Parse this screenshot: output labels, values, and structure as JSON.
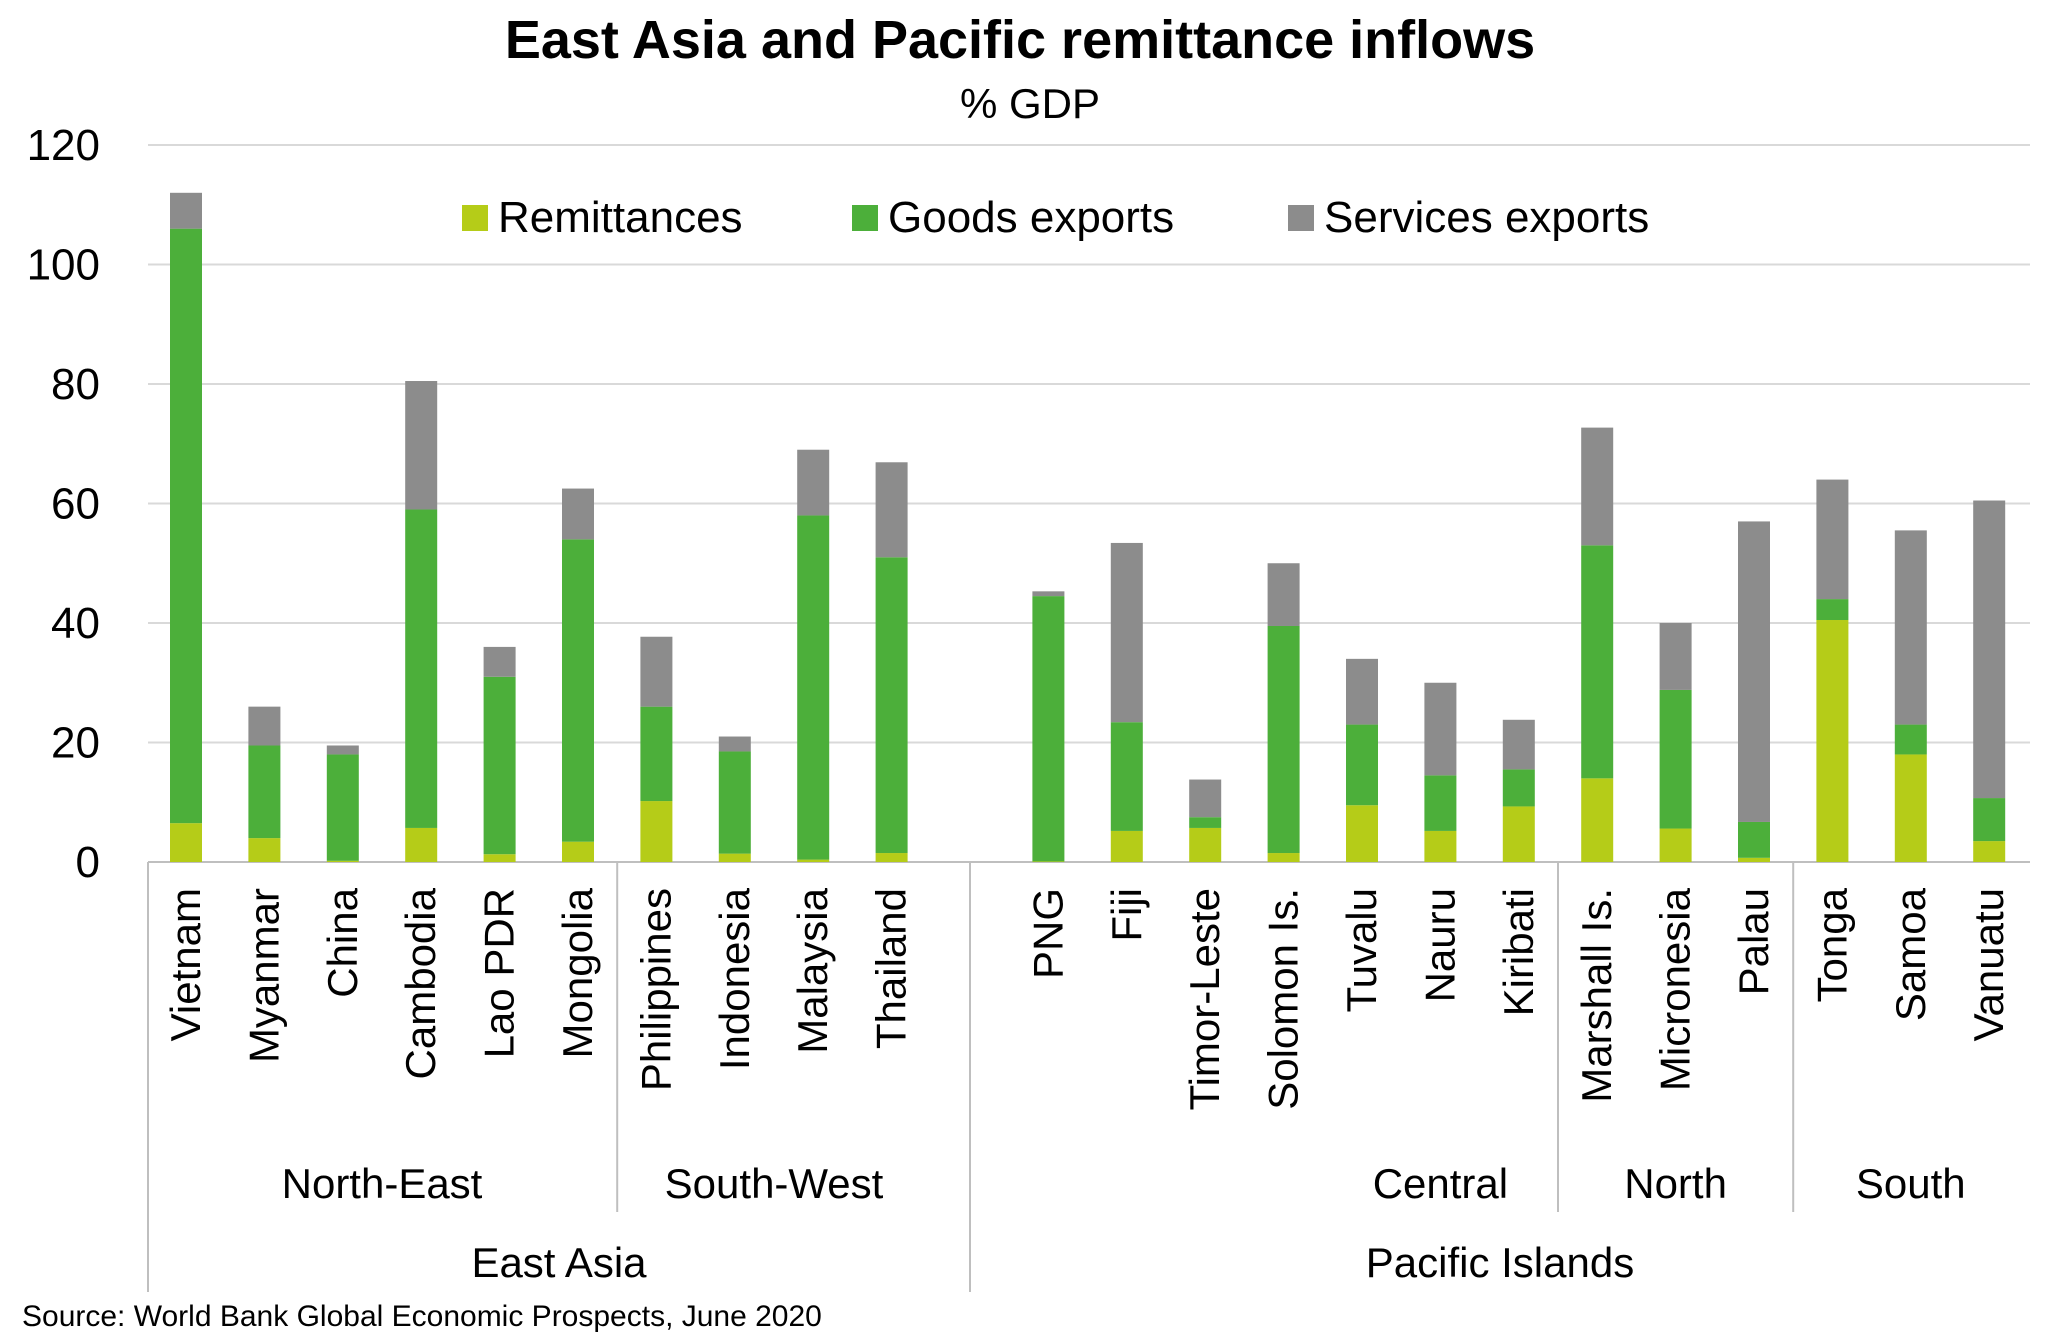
{
  "chart_data": {
    "type": "bar",
    "stacked": true,
    "title": "East Asia and Pacific remittance inflows",
    "subtitle": "% GDP",
    "ylim": [
      0,
      120
    ],
    "yticks": [
      0,
      20,
      40,
      60,
      80,
      100,
      120
    ],
    "grid": true,
    "legend_position": "top",
    "categories": [
      "Vietnam",
      "Myanmar",
      "China",
      "Cambodia",
      "Lao PDR",
      "Mongolia",
      "Philippines",
      "Indonesia",
      "Malaysia",
      "Thailand",
      "PNG",
      "Fiji",
      "Timor-Leste",
      "Solomon Is.",
      "Tuvalu",
      "Nauru",
      "Kiribati",
      "Marshall Is.",
      "Micronesia",
      "Palau",
      "Tonga",
      "Samoa",
      "Vanuatu"
    ],
    "series": [
      {
        "name": "Remittances",
        "color": "#B5CC18",
        "values": [
          6.5,
          4,
          0.2,
          5.7,
          1.3,
          3.4,
          10.2,
          1.4,
          0.4,
          1.5,
          0.1,
          5.2,
          5.7,
          1.5,
          9.5,
          5.2,
          9.3,
          14,
          5.6,
          0.7,
          40.5,
          18,
          3.5
        ]
      },
      {
        "name": "Goods exports",
        "color": "#4CAF3A",
        "values": [
          99.5,
          15.5,
          17.8,
          53.3,
          29.7,
          50.6,
          15.8,
          17.1,
          57.6,
          49.5,
          44.4,
          18.2,
          1.8,
          38,
          13.5,
          9.3,
          6.2,
          39,
          23.2,
          6,
          3.5,
          5,
          7.2
        ]
      },
      {
        "name": "Services exports",
        "color": "#8C8C8C",
        "values": [
          6,
          6.5,
          1.5,
          21.5,
          5,
          8.5,
          11.7,
          2.5,
          11,
          15.9,
          0.8,
          30,
          6.3,
          10.5,
          11,
          15.5,
          8.3,
          19.7,
          11.2,
          50.3,
          20,
          32.5,
          49.8
        ]
      }
    ],
    "subgroups": [
      {
        "label": "North-East",
        "start": 0,
        "end": 5
      },
      {
        "label": "South-West",
        "start": 6,
        "end": 9
      },
      {
        "label": "",
        "start": 10,
        "end": 13
      },
      {
        "label": "Central",
        "start": 14,
        "end": 16
      },
      {
        "label": "North",
        "start": 17,
        "end": 19
      },
      {
        "label": "South",
        "start": 20,
        "end": 22
      }
    ],
    "groups": [
      {
        "label": "East Asia",
        "start": 0,
        "end": 9
      },
      {
        "label": "Pacific Islands",
        "start": 10,
        "end": 22
      }
    ]
  },
  "source_note": "Source: World Bank Global Economic Prospects, June 2020"
}
